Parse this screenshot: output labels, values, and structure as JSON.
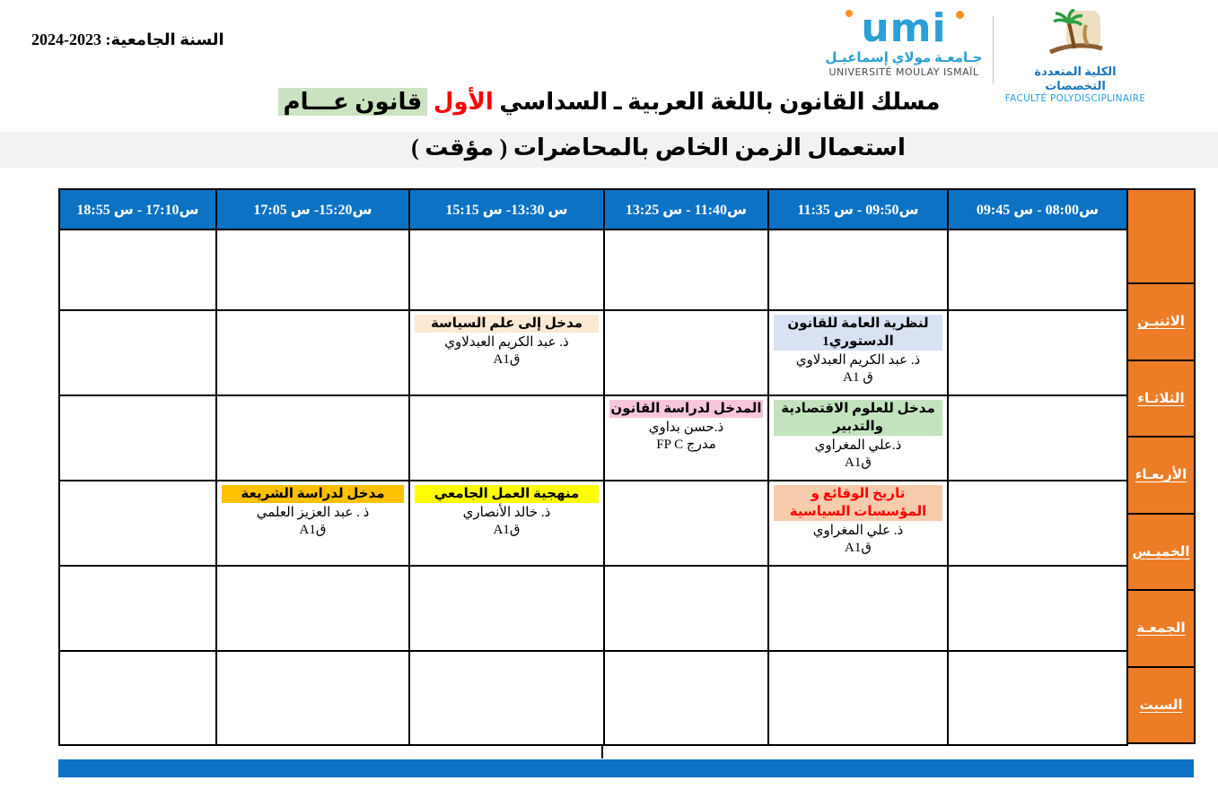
{
  "header": {
    "academic_year": "السنة الجامعية: 2023-2024",
    "umi_logo": {
      "mark": "umi",
      "arabic": "جـامعـة مولاي إسماعيـل",
      "latin": "UNIVERSITÉ MOULAY ISMAÏL"
    },
    "faculty_logo": {
      "icon": "palm-tree-icon",
      "arabic": "الكلية المتعددة التخصصات",
      "latin": "FACULTÉ POLYDISCIPLINAIRE"
    },
    "title": {
      "lead": "مسلك القانون باللغة العربية ـ  السداسي",
      "semester_red": "الأول",
      "track_highlighted": "قانون عـــام"
    },
    "subtitle": "استعمال الزمن الخاص بالمحاضرات ( مؤقت )"
  },
  "timetable": {
    "time_columns": [
      "س17:10 - س 18:55",
      "س15:20- س 17:05",
      "س 13:30- س 15:15",
      "س11:40 - س 13:25",
      "س09:50 - س 11:35",
      "س08:00 - س 09:45"
    ],
    "days": [
      "الاثنيـن",
      "الثلاثـاء",
      "الأربعـاء",
      "الخميـس",
      "الجمعـة",
      "السبت"
    ],
    "courses": [
      {
        "day": 1,
        "col": 4,
        "title": "لنظرية العامة للقانون الدستوري1",
        "teacher": "ذ. عبد الكريم العبدلاوي",
        "room": "ق A1",
        "highlight": "#D9E2F3",
        "title_color": "#000000"
      },
      {
        "day": 1,
        "col": 2,
        "title": "مدخل إلى علم السياسة",
        "teacher": "ذ. عبد الكريم العبدلاوي",
        "room": "قA1",
        "highlight": "#FBE9D4",
        "title_color": "#000000"
      },
      {
        "day": 2,
        "col": 4,
        "title": "مدخل للعلوم الاقتصادية والتدبير",
        "teacher": "ذ.علي المغراوي",
        "room": "قA1",
        "highlight": "#C3E3BF",
        "title_color": "#000000"
      },
      {
        "day": 2,
        "col": 3,
        "title": "المدخل لدراسة القانون",
        "teacher": "ذ.حسن بداوي",
        "room": "مدرج FP C",
        "highlight": "#F8C6DB",
        "title_color": "#000000"
      },
      {
        "day": 3,
        "col": 4,
        "title": "تاريخ الوقائع و المؤسسات السياسية",
        "teacher": "ذ. علي المغراوي",
        "room": "قA1",
        "highlight": "#F8CBAD",
        "title_color": "#FF0000"
      },
      {
        "day": 3,
        "col": 2,
        "title": "منهجية العمل الجامعي",
        "teacher": "ذ. خالد الأنصاري",
        "room": "قA1",
        "highlight": "#FFFF00",
        "title_color": "#000000"
      },
      {
        "day": 3,
        "col": 1,
        "title": "مدخل لدراسة الشريعة",
        "teacher": "ذ . عبد العزيز العلمي",
        "room": "قA1",
        "highlight": "#FFC000",
        "title_color": "#000000"
      }
    ]
  },
  "colors": {
    "header_blue": "#0B72C4",
    "day_orange": "#EC7C26",
    "title_track_bg": "#CBE3C0",
    "subtitle_bar_bg": "#F2F2F2",
    "red_accent": "#FF0000"
  }
}
